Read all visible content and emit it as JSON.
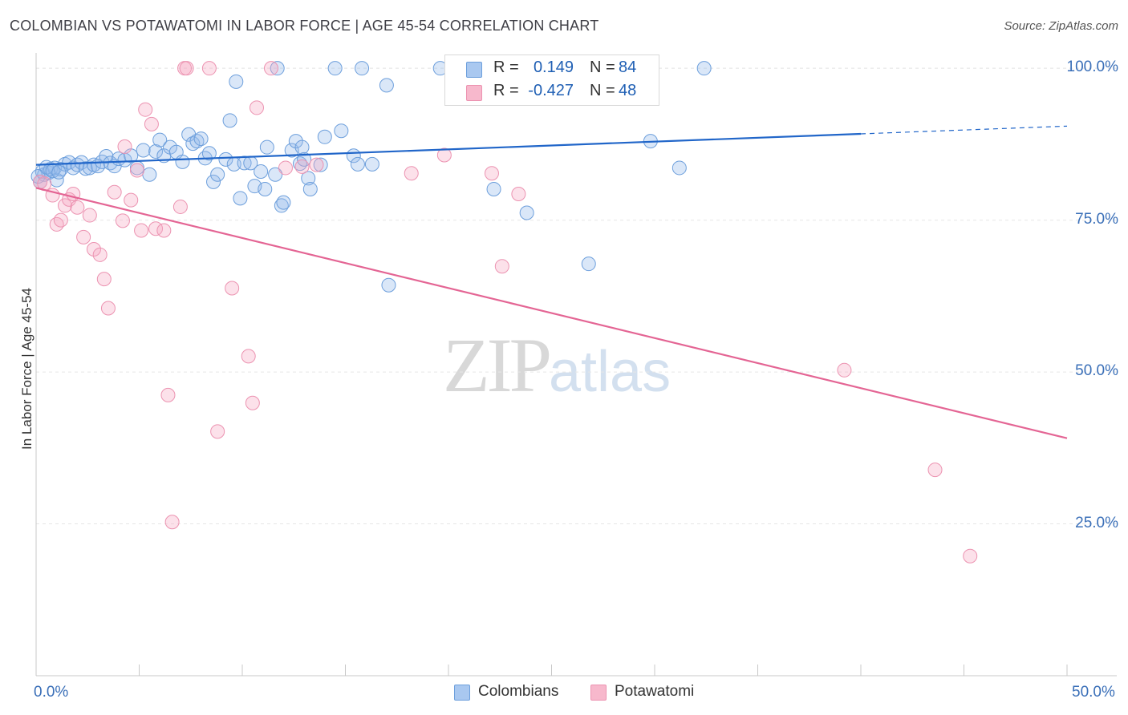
{
  "header": {
    "title": "COLOMBIAN VS POTAWATOMI IN LABOR FORCE | AGE 45-54 CORRELATION CHART",
    "source": "Source: ZipAtlas.com"
  },
  "watermark": {
    "zip": "ZIP",
    "atlas": "atlas"
  },
  "stats_box": {
    "rows": [
      {
        "r_label": "R =",
        "r_value": "0.149",
        "n_label": "N =",
        "n_value": "84",
        "color": "#a9c8f0"
      },
      {
        "r_label": "R =",
        "r_value": "-0.427",
        "n_label": "N =",
        "n_value": "48",
        "color": "#f7b8cc"
      }
    ]
  },
  "legend": {
    "items": [
      {
        "label": "Colombians",
        "color": "#a9c8f0"
      },
      {
        "label": "Potawatomi",
        "color": "#f7b8cc"
      }
    ]
  },
  "colors": {
    "colombians_fill": "rgba(150,185,235,0.35)",
    "colombians_stroke": "#6d9fdc",
    "colombians_line": "#2166c9",
    "potawatomi_fill": "rgba(245,170,195,0.35)",
    "potawatomi_stroke": "#ec93b1",
    "potawatomi_line": "#e46594",
    "tick_label": "#3a6fb8"
  },
  "chart_data": {
    "type": "scatter",
    "title": "COLOMBIAN VS POTAWATOMI IN LABOR FORCE | AGE 45-54 CORRELATION CHART",
    "xlabel": "",
    "ylabel": "In Labor Force | Age 45-54",
    "xlim": [
      0,
      50
    ],
    "ylim": [
      0,
      102
    ],
    "x_tick_labels": [
      "0.0%",
      "50.0%"
    ],
    "y_ticks": [
      25,
      50,
      75,
      100
    ],
    "y_tick_labels": [
      "25.0%",
      "50.0%",
      "75.0%",
      "100.0%"
    ],
    "grid": true,
    "legend_position": "bottom-center",
    "series": [
      {
        "name": "Colombians",
        "trend": {
          "x0": 0,
          "y0": 84.1,
          "x1": 40,
          "y1": 89.2,
          "dashed_to": 50
        },
        "points": [
          [
            0.2,
            81.3
          ],
          [
            0.3,
            83.0
          ],
          [
            0.4,
            82.5
          ],
          [
            0.6,
            82.8
          ],
          [
            0.7,
            83.4
          ],
          [
            0.9,
            83.6
          ],
          [
            1.0,
            81.6
          ],
          [
            1.2,
            83.4
          ],
          [
            1.4,
            84.2
          ],
          [
            1.6,
            84.5
          ],
          [
            1.8,
            83.6
          ],
          [
            2.0,
            84.1
          ],
          [
            2.2,
            84.5
          ],
          [
            2.4,
            83.5
          ],
          [
            2.6,
            83.6
          ],
          [
            2.8,
            84.1
          ],
          [
            3.0,
            83.9
          ],
          [
            3.2,
            84.6
          ],
          [
            3.4,
            85.5
          ],
          [
            3.6,
            84.4
          ],
          [
            3.8,
            83.9
          ],
          [
            4.0,
            85.1
          ],
          [
            4.3,
            84.9
          ],
          [
            4.6,
            85.6
          ],
          [
            4.9,
            83.6
          ],
          [
            5.2,
            86.5
          ],
          [
            5.5,
            82.5
          ],
          [
            5.8,
            86.3
          ],
          [
            6.0,
            88.2
          ],
          [
            6.2,
            85.6
          ],
          [
            6.5,
            87.0
          ],
          [
            6.8,
            86.2
          ],
          [
            7.1,
            84.6
          ],
          [
            7.4,
            89.1
          ],
          [
            7.6,
            87.6
          ],
          [
            7.8,
            88.0
          ],
          [
            8.0,
            88.4
          ],
          [
            8.2,
            85.2
          ],
          [
            8.4,
            86.0
          ],
          [
            8.6,
            81.3
          ],
          [
            8.8,
            82.5
          ],
          [
            9.2,
            85.0
          ],
          [
            9.4,
            91.4
          ],
          [
            9.6,
            84.2
          ],
          [
            9.7,
            97.8
          ],
          [
            9.9,
            78.6
          ],
          [
            10.1,
            84.4
          ],
          [
            10.4,
            84.4
          ],
          [
            10.6,
            80.6
          ],
          [
            10.9,
            83.0
          ],
          [
            11.1,
            80.1
          ],
          [
            11.2,
            87.0
          ],
          [
            11.6,
            82.5
          ],
          [
            11.7,
            100.0
          ],
          [
            11.9,
            77.4
          ],
          [
            12.0,
            77.9
          ],
          [
            12.4,
            86.5
          ],
          [
            12.6,
            88.0
          ],
          [
            12.8,
            84.3
          ],
          [
            12.9,
            87.0
          ],
          [
            13.0,
            85.0
          ],
          [
            13.2,
            81.9
          ],
          [
            13.3,
            80.1
          ],
          [
            13.8,
            84.1
          ],
          [
            14.0,
            88.7
          ],
          [
            14.5,
            100.0
          ],
          [
            14.8,
            89.7
          ],
          [
            15.4,
            85.6
          ],
          [
            15.6,
            84.2
          ],
          [
            15.8,
            100.0
          ],
          [
            16.3,
            84.2
          ],
          [
            17.0,
            97.2
          ],
          [
            17.1,
            64.3
          ],
          [
            19.6,
            100.0
          ],
          [
            22.2,
            80.1
          ],
          [
            23.8,
            76.2
          ],
          [
            26.8,
            67.8
          ],
          [
            29.8,
            88.0
          ],
          [
            31.2,
            83.6
          ],
          [
            32.4,
            100.0
          ],
          [
            0.1,
            82.2
          ],
          [
            0.5,
            83.7
          ],
          [
            0.8,
            83.1
          ],
          [
            1.1,
            82.9
          ]
        ]
      },
      {
        "name": "Potawatomi",
        "trend": {
          "x0": 0,
          "y0": 80.3,
          "x1": 50,
          "y1": 39.1
        },
        "points": [
          [
            0.2,
            81.3
          ],
          [
            0.4,
            81.0
          ],
          [
            0.8,
            79.1
          ],
          [
            1.0,
            74.3
          ],
          [
            1.2,
            75.0
          ],
          [
            1.4,
            77.4
          ],
          [
            1.6,
            78.4
          ],
          [
            1.8,
            79.3
          ],
          [
            2.0,
            77.1
          ],
          [
            2.3,
            72.2
          ],
          [
            2.6,
            75.8
          ],
          [
            2.8,
            70.2
          ],
          [
            3.1,
            69.3
          ],
          [
            3.3,
            65.3
          ],
          [
            3.5,
            60.5
          ],
          [
            3.8,
            79.6
          ],
          [
            4.2,
            74.9
          ],
          [
            4.3,
            87.1
          ],
          [
            4.6,
            78.3
          ],
          [
            4.9,
            83.2
          ],
          [
            5.1,
            73.3
          ],
          [
            5.3,
            93.2
          ],
          [
            5.6,
            90.8
          ],
          [
            5.8,
            73.6
          ],
          [
            6.2,
            73.3
          ],
          [
            6.4,
            46.2
          ],
          [
            6.6,
            25.3
          ],
          [
            7.0,
            77.2
          ],
          [
            7.2,
            100.0
          ],
          [
            7.3,
            100.0
          ],
          [
            8.4,
            100.0
          ],
          [
            8.8,
            40.2
          ],
          [
            9.5,
            63.8
          ],
          [
            10.3,
            52.6
          ],
          [
            10.5,
            44.9
          ],
          [
            10.7,
            93.5
          ],
          [
            11.4,
            100.0
          ],
          [
            12.1,
            83.6
          ],
          [
            13.6,
            84.1
          ],
          [
            18.2,
            82.7
          ],
          [
            19.8,
            85.7
          ],
          [
            22.1,
            82.7
          ],
          [
            22.6,
            67.4
          ],
          [
            23.4,
            79.3
          ],
          [
            39.2,
            50.3
          ],
          [
            43.6,
            33.9
          ],
          [
            45.3,
            19.7
          ],
          [
            12.9,
            83.8
          ]
        ]
      }
    ]
  }
}
